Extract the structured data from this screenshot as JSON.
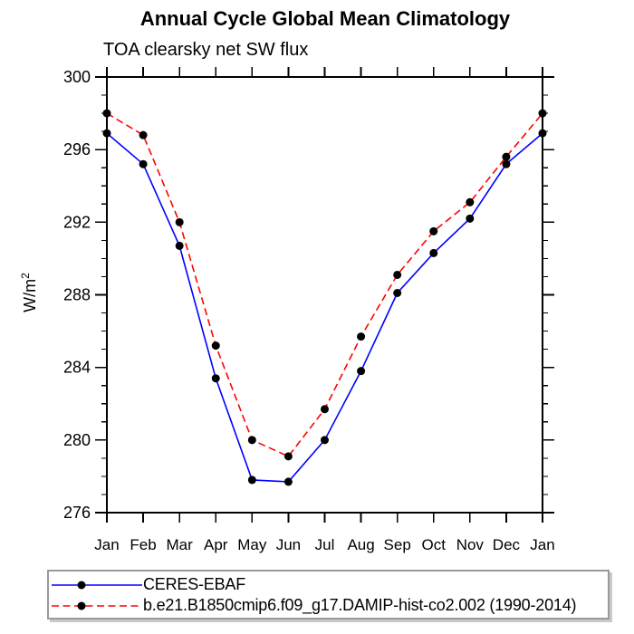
{
  "chart_data": {
    "type": "line",
    "title": "Annual Cycle Global Mean Climatology",
    "subtitle": "TOA clearsky net SW flux",
    "ylabel_base": "W/m",
    "ylabel_exponent": "2",
    "xlabel": "",
    "categories": [
      "Jan",
      "Feb",
      "Mar",
      "Apr",
      "May",
      "Jun",
      "Jul",
      "Aug",
      "Sep",
      "Oct",
      "Nov",
      "Dec",
      "Jan"
    ],
    "ylim": [
      276,
      300
    ],
    "ytick_major": [
      276,
      280,
      284,
      288,
      292,
      296,
      300
    ],
    "ytick_minor_step": 1,
    "grid": false,
    "legend_position": "bottom",
    "axis_color": "#000000",
    "marker_color": "#000000",
    "series": [
      {
        "name": "CERES-EBAF",
        "color": "#0000ff",
        "style": "solid",
        "marker": "circle",
        "values": [
          296.9,
          295.2,
          290.7,
          283.4,
          277.8,
          277.7,
          280.0,
          283.8,
          288.1,
          290.3,
          292.2,
          295.2,
          296.9
        ]
      },
      {
        "name": "b.e21.B1850cmip6.f09_g17.DAMIP-hist-co2.002 (1990-2014)",
        "color": "#ff0000",
        "style": "dashed",
        "marker": "circle",
        "values": [
          298.0,
          296.8,
          292.0,
          285.2,
          280.0,
          279.1,
          281.7,
          285.7,
          289.1,
          291.5,
          293.1,
          295.6,
          298.0
        ]
      }
    ]
  }
}
